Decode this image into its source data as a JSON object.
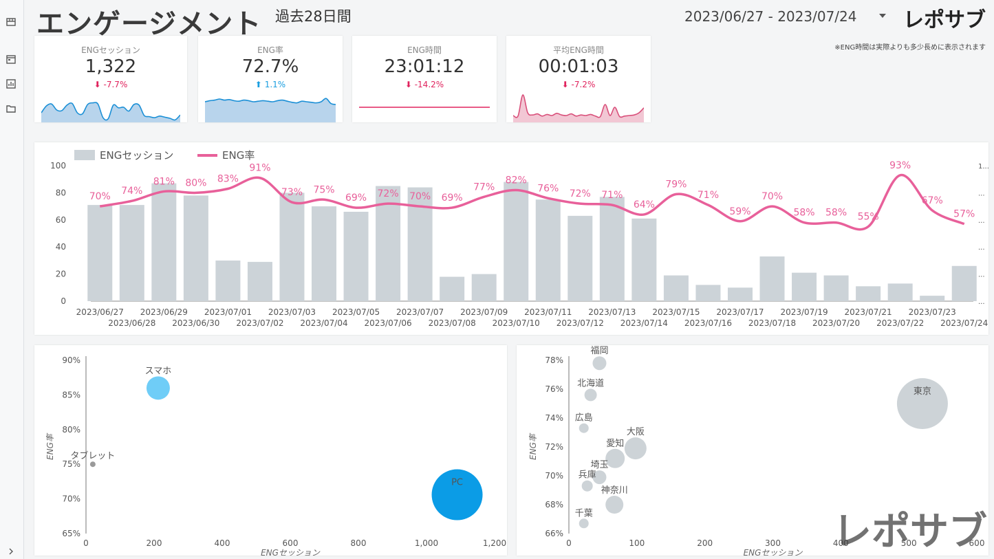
{
  "header": {
    "title": "エンゲージメント",
    "subtitle": "過去28日間",
    "date_range": "2023/06/27 - 2023/07/24",
    "logo": "レポサブ",
    "note": "※ENG時間は実際よりも多少長めに表示されます"
  },
  "sidebar": {
    "icons": [
      "store-icon",
      "calendar-icon",
      "bar-chart-icon",
      "folder-icon",
      "expand-chevron-icon"
    ]
  },
  "kpis": [
    {
      "label": "ENGセッション",
      "value": "1,322",
      "delta": "-7.7%",
      "direction": "down",
      "spark_color": "#1a8fd6",
      "spark_fill": "#b8d4ec",
      "spark": [
        30,
        55,
        62,
        40,
        38,
        58,
        64,
        30,
        26,
        60,
        66,
        62,
        12,
        8,
        58,
        48,
        50,
        36,
        60,
        58,
        20,
        16,
        12,
        18,
        14,
        10,
        4,
        22
      ]
    },
    {
      "label": "ENG率",
      "value": "72.7%",
      "delta": "1.1%",
      "direction": "up",
      "spark_color": "#1a8fd6",
      "spark_fill": "#b8d4ec",
      "spark": [
        70,
        74,
        76,
        80,
        76,
        78,
        74,
        72,
        76,
        74,
        70,
        72,
        74,
        72,
        70,
        74,
        76,
        72,
        68,
        66,
        72,
        70,
        68,
        66,
        70,
        82,
        64,
        60
      ]
    },
    {
      "label": "ENG時間",
      "value": "23:01:12",
      "delta": "-14.2%",
      "direction": "down",
      "spark_color": "#e0245e",
      "spark_fill": "#ffffff",
      "spark": [
        50,
        50,
        50,
        50,
        50,
        50,
        50,
        50,
        50,
        50,
        50,
        50,
        50,
        50,
        50,
        50,
        50,
        50,
        50,
        50,
        50,
        50,
        50,
        50,
        50,
        50,
        50,
        50
      ]
    },
    {
      "label": "平均ENG時間",
      "value": "00:01:03",
      "delta": "-7.2%",
      "direction": "down",
      "spark_color": "#d94f7a",
      "spark_fill": "#f2c7d4",
      "spark": [
        20,
        18,
        95,
        30,
        22,
        26,
        18,
        24,
        20,
        28,
        22,
        20,
        26,
        18,
        22,
        20,
        24,
        18,
        16,
        60,
        20,
        50,
        16,
        18,
        20,
        22,
        30,
        48
      ]
    }
  ],
  "main_chart": {
    "chart_data": {
      "type": "bar",
      "categories": [
        "2023/06/27",
        "2023/06/28",
        "2023/06/29",
        "2023/06/30",
        "2023/07/01",
        "2023/07/02",
        "2023/07/03",
        "2023/07/04",
        "2023/07/05",
        "2023/07/06",
        "2023/07/07",
        "2023/07/08",
        "2023/07/09",
        "2023/07/10",
        "2023/07/11",
        "2023/07/12",
        "2023/07/13",
        "2023/07/14",
        "2023/07/15",
        "2023/07/16",
        "2023/07/17",
        "2023/07/18",
        "2023/07/19",
        "2023/07/20",
        "2023/07/21",
        "2023/07/22",
        "2023/07/23",
        "2023/07/24"
      ],
      "series": [
        {
          "name": "ENGセッション",
          "type": "bar",
          "color": "#ccd3d8",
          "values": [
            71,
            71,
            87,
            78,
            30,
            29,
            80,
            70,
            66,
            85,
            84,
            18,
            20,
            88,
            75,
            63,
            77,
            61,
            19,
            12,
            10,
            33,
            21,
            19,
            11,
            13,
            4,
            26
          ]
        },
        {
          "name": "ENG率",
          "type": "line",
          "color": "#e8609a",
          "values": [
            70,
            74,
            81,
            80,
            83,
            91,
            73,
            75,
            69,
            72,
            70,
            69,
            77,
            82,
            76,
            72,
            71,
            64,
            79,
            71,
            59,
            70,
            58,
            58,
            55,
            93,
            67,
            57
          ],
          "labels": [
            "70%",
            "74%",
            "81%",
            "80%",
            "83%",
            "91%",
            "73%",
            "75%",
            "69%",
            "72%",
            "70%",
            "69%",
            "77%",
            "82%",
            "76%",
            "72%",
            "71%",
            "64%",
            "79%",
            "71%",
            "59%",
            "70%",
            "58%",
            "58%",
            "55%",
            "93%",
            "67%",
            "57%"
          ]
        }
      ],
      "y_ticks": [
        "0",
        "20",
        "40",
        "60",
        "80",
        "100"
      ],
      "right_ticks": [
        "...",
        "...",
        "...",
        "...",
        "...",
        "1..."
      ],
      "ylim": [
        0,
        100
      ]
    }
  },
  "device_chart": {
    "chart_data": {
      "type": "scatter",
      "xlabel": "ENGセッション",
      "ylabel": "ENG率",
      "xlim": [
        0,
        1200
      ],
      "ylim": [
        65,
        90
      ],
      "x_ticks": [
        "0",
        "200",
        "400",
        "600",
        "800",
        "1,000",
        "1,200"
      ],
      "y_ticks": [
        "65%",
        "70%",
        "75%",
        "80%",
        "85%",
        "90%"
      ],
      "points": [
        {
          "label": "スマホ",
          "x": 212,
          "y": 86,
          "r": 17,
          "color": "#6fcdf7"
        },
        {
          "label": "タブレット",
          "x": 20,
          "y": 75,
          "r": 4,
          "color": "#9a9a9a"
        },
        {
          "label": "PC",
          "x": 1090,
          "y": 70.6,
          "r": 37,
          "color": "#0b9ce6"
        }
      ]
    }
  },
  "region_chart": {
    "chart_data": {
      "type": "scatter",
      "xlabel": "ENGセッション",
      "ylabel": "ENG率",
      "xlim": [
        0,
        600
      ],
      "ylim": [
        66,
        78
      ],
      "x_ticks": [
        "0",
        "100",
        "200",
        "300",
        "400",
        "500",
        "600"
      ],
      "y_ticks": [
        "66%",
        "68%",
        "70%",
        "72%",
        "74%",
        "76%",
        "78%"
      ],
      "points": [
        {
          "label": "東京",
          "x": 520,
          "y": 75,
          "r": 37,
          "color": "#cdd3d7"
        },
        {
          "label": "福岡",
          "x": 45,
          "y": 77.8,
          "r": 10,
          "color": "#cdd3d7"
        },
        {
          "label": "北海道",
          "x": 32,
          "y": 75.6,
          "r": 9,
          "color": "#cdd3d7"
        },
        {
          "label": "広島",
          "x": 22,
          "y": 73.3,
          "r": 7,
          "color": "#cdd3d7"
        },
        {
          "label": "大阪",
          "x": 98,
          "y": 71.9,
          "r": 16,
          "color": "#cdd3d7"
        },
        {
          "label": "愛知",
          "x": 68,
          "y": 71.2,
          "r": 14,
          "color": "#cdd3d7"
        },
        {
          "label": "埼玉",
          "x": 45,
          "y": 69.9,
          "r": 10,
          "color": "#cdd3d7"
        },
        {
          "label": "兵庫",
          "x": 27,
          "y": 69.3,
          "r": 8,
          "color": "#cdd3d7"
        },
        {
          "label": "神奈川",
          "x": 67,
          "y": 68,
          "r": 13,
          "color": "#cdd3d7"
        },
        {
          "label": "千葉",
          "x": 22,
          "y": 66.7,
          "r": 7,
          "color": "#cdd3d7"
        }
      ]
    }
  },
  "watermark": "レポサブ"
}
